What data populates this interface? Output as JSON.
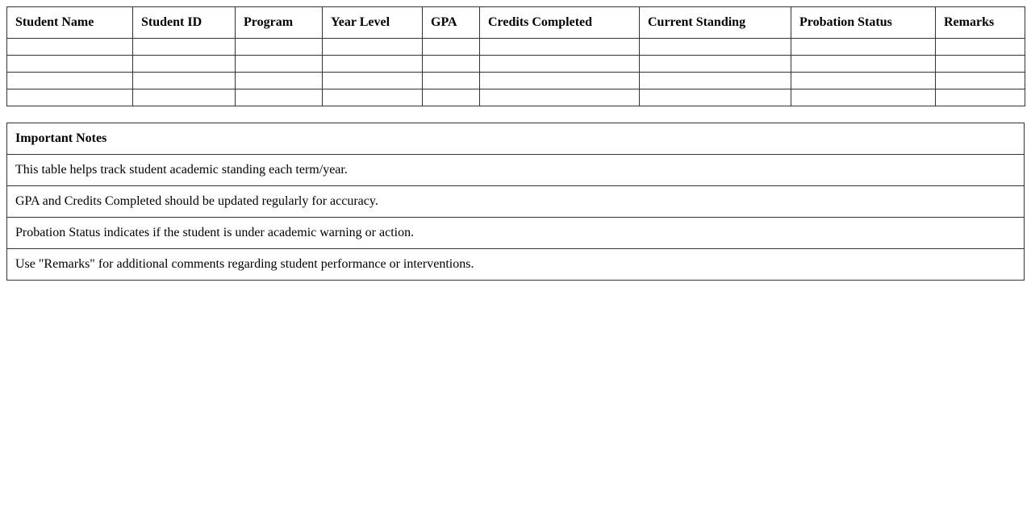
{
  "table": {
    "headers": [
      "Student Name",
      "Student ID",
      "Program",
      "Year Level",
      "GPA",
      "Credits Completed",
      "Current Standing",
      "Probation Status",
      "Remarks"
    ],
    "row_count": 4
  },
  "notes": {
    "title": "Important Notes",
    "items": [
      "This table helps track student academic standing each term/year.",
      "GPA and Credits Completed should be updated regularly for accuracy.",
      "Probation Status indicates if the student is under academic warning or action.",
      "Use \"Remarks\" for additional comments regarding student performance or interventions."
    ]
  }
}
